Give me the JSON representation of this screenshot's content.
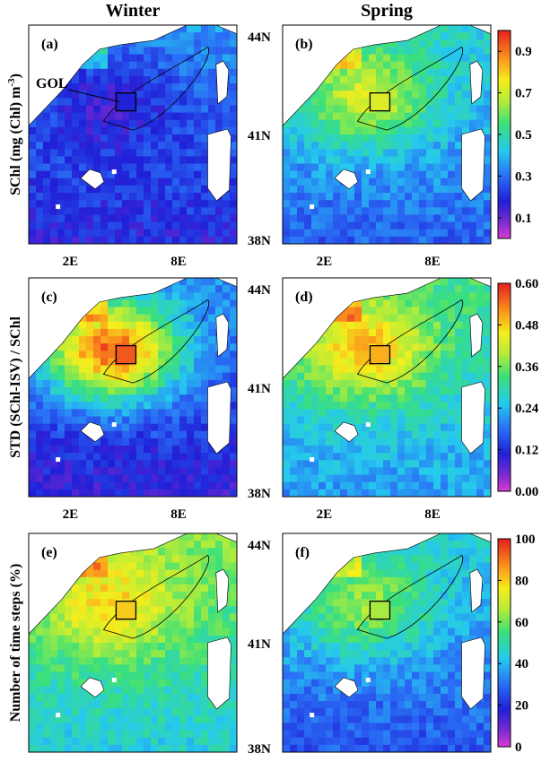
{
  "chart_data": {
    "type": "heatmap",
    "columns": [
      "Winter",
      "Spring"
    ],
    "lat_ticks": [
      "44N",
      "41N",
      "38N"
    ],
    "lon_ticks": [
      "2E",
      "8E"
    ],
    "box_label": "GOL",
    "rows": [
      {
        "ylabel": "SChl (mg (Chl) m",
        "ylabel_sup": "-3",
        "ylabel_end": ")",
        "colorbar": {
          "ticks": [
            "0.9",
            "0.7",
            "0.5",
            "0.3",
            "0.1"
          ],
          "range": [
            0,
            1
          ]
        },
        "panels": [
          {
            "label": "(a)",
            "field_mean": 0.32,
            "gol_value": 0.18
          },
          {
            "label": "(b)",
            "field_mean": 0.42,
            "gol_value": 0.72
          }
        ]
      },
      {
        "ylabel": "STD (SChl-ISV) / SChl",
        "colorbar": {
          "ticks": [
            "0.60",
            "0.48",
            "0.36",
            "0.24",
            "0.12",
            "0.00"
          ],
          "range": [
            0,
            0.6
          ]
        },
        "panels": [
          {
            "label": "(c)",
            "field_mean": 0.18,
            "gol_value": 0.56
          },
          {
            "label": "(d)",
            "field_mean": 0.3,
            "gol_value": 0.5
          }
        ]
      },
      {
        "ylabel": "Number of time steps (%)",
        "colorbar": {
          "ticks": [
            "100",
            "80",
            "60",
            "40",
            "20",
            "0"
          ],
          "range": [
            0,
            100
          ]
        },
        "panels": [
          {
            "label": "(e)",
            "field_mean": 58,
            "gol_value": 80
          },
          {
            "label": "(f)",
            "field_mean": 40,
            "gol_value": 65
          }
        ]
      }
    ]
  }
}
